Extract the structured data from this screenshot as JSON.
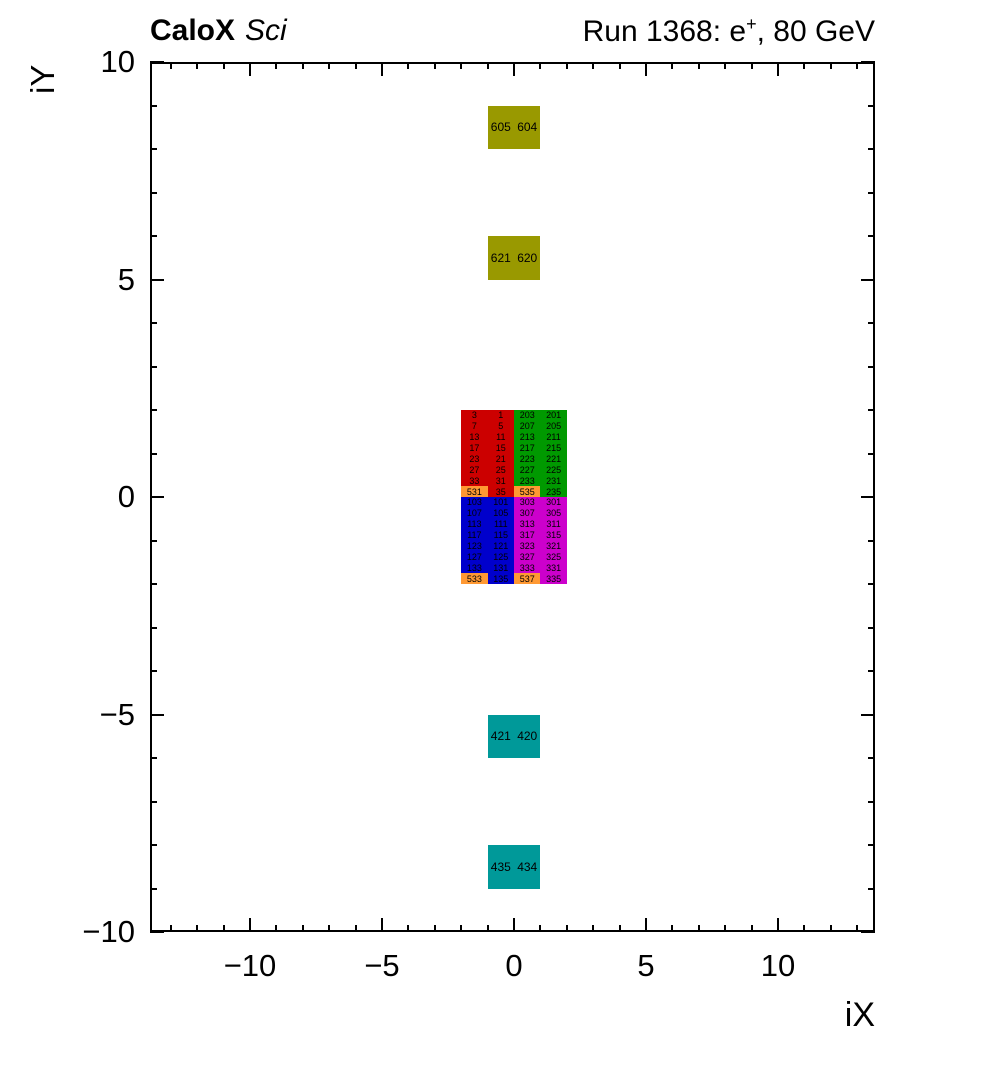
{
  "header": {
    "brand_bold": "CaloX",
    "brand_italic": "Sci",
    "run_prefix": "Run 1368: e",
    "run_sup": "+",
    "run_suffix": ", 80 GeV"
  },
  "axes": {
    "x_title": "iX",
    "y_title": "iY",
    "x_tick_values": [
      -10,
      -5,
      0,
      5,
      10
    ],
    "x_tick_labels": [
      "−10",
      "−5",
      "0",
      "5",
      "10"
    ],
    "y_tick_values": [
      10,
      5,
      0,
      -5,
      -10
    ],
    "y_tick_labels": [
      "10",
      "5",
      "0",
      "−5",
      "−10"
    ],
    "x_minor_tick_range": [
      -13,
      13
    ],
    "y_minor_tick_range": [
      -10,
      10
    ]
  },
  "colors": {
    "red": "#cc0000",
    "green": "#009900",
    "blue": "#0000cc",
    "magenta": "#cc00cc",
    "orange": "#ff9933",
    "olive": "#999900",
    "teal": "#009999",
    "frame": "#000000",
    "text": "#000000",
    "background": "#ffffff"
  },
  "chart_data": {
    "type": "heatmap",
    "title": "CaloX Sci — Run 1368: e+, 80 GeV",
    "xlabel": "iX",
    "ylabel": "iY",
    "xlim": [
      -14,
      14
    ],
    "ylim": [
      -10,
      10
    ],
    "grid": false,
    "legend": "none",
    "pair_blocks": [
      {
        "color_key": "olive",
        "x_left": -1,
        "y_top": 9,
        "width": 2,
        "height": 1,
        "labels": [
          "605",
          "604"
        ]
      },
      {
        "color_key": "olive",
        "x_left": -1,
        "y_top": 6,
        "width": 2,
        "height": 1,
        "labels": [
          "621",
          "620"
        ]
      },
      {
        "color_key": "teal",
        "x_left": -1,
        "y_top": -5,
        "width": 2,
        "height": 1,
        "labels": [
          "421",
          "420"
        ]
      },
      {
        "color_key": "teal",
        "x_left": -1,
        "y_top": -8,
        "width": 2,
        "height": 1,
        "labels": [
          "435",
          "434"
        ]
      }
    ],
    "quadrants": [
      {
        "name": "upper-left",
        "color_key": "red",
        "x_left": -2,
        "y_top": 2,
        "width": 2,
        "height": 2,
        "rows": [
          [
            "3",
            "1"
          ],
          [
            "7",
            "5"
          ],
          [
            "13",
            "11"
          ],
          [
            "17",
            "15"
          ],
          [
            "23",
            "21"
          ],
          [
            "27",
            "25"
          ],
          [
            "33",
            "31"
          ],
          [
            "531",
            "35"
          ]
        ],
        "highlight": {
          "row": 7,
          "col": 0,
          "color_key": "orange"
        }
      },
      {
        "name": "upper-right",
        "color_key": "green",
        "x_left": 0,
        "y_top": 2,
        "width": 2,
        "height": 2,
        "rows": [
          [
            "203",
            "201"
          ],
          [
            "207",
            "205"
          ],
          [
            "213",
            "211"
          ],
          [
            "217",
            "215"
          ],
          [
            "223",
            "221"
          ],
          [
            "227",
            "225"
          ],
          [
            "233",
            "231"
          ],
          [
            "535",
            "235"
          ]
        ],
        "highlight": {
          "row": 7,
          "col": 0,
          "color_key": "orange"
        }
      },
      {
        "name": "lower-left",
        "color_key": "blue",
        "x_left": -2,
        "y_top": 0,
        "width": 2,
        "height": 2,
        "rows": [
          [
            "103",
            "101"
          ],
          [
            "107",
            "105"
          ],
          [
            "113",
            "111"
          ],
          [
            "117",
            "115"
          ],
          [
            "123",
            "121"
          ],
          [
            "127",
            "125"
          ],
          [
            "133",
            "131"
          ],
          [
            "533",
            "135"
          ]
        ],
        "highlight": {
          "row": 7,
          "col": 0,
          "color_key": "orange"
        }
      },
      {
        "name": "lower-right",
        "color_key": "magenta",
        "x_left": 0,
        "y_top": 0,
        "width": 2,
        "height": 2,
        "rows": [
          [
            "303",
            "301"
          ],
          [
            "307",
            "305"
          ],
          [
            "313",
            "311"
          ],
          [
            "317",
            "315"
          ],
          [
            "323",
            "321"
          ],
          [
            "327",
            "325"
          ],
          [
            "333",
            "331"
          ],
          [
            "537",
            "335"
          ]
        ],
        "highlight": {
          "row": 7,
          "col": 0,
          "color_key": "orange"
        }
      }
    ]
  }
}
